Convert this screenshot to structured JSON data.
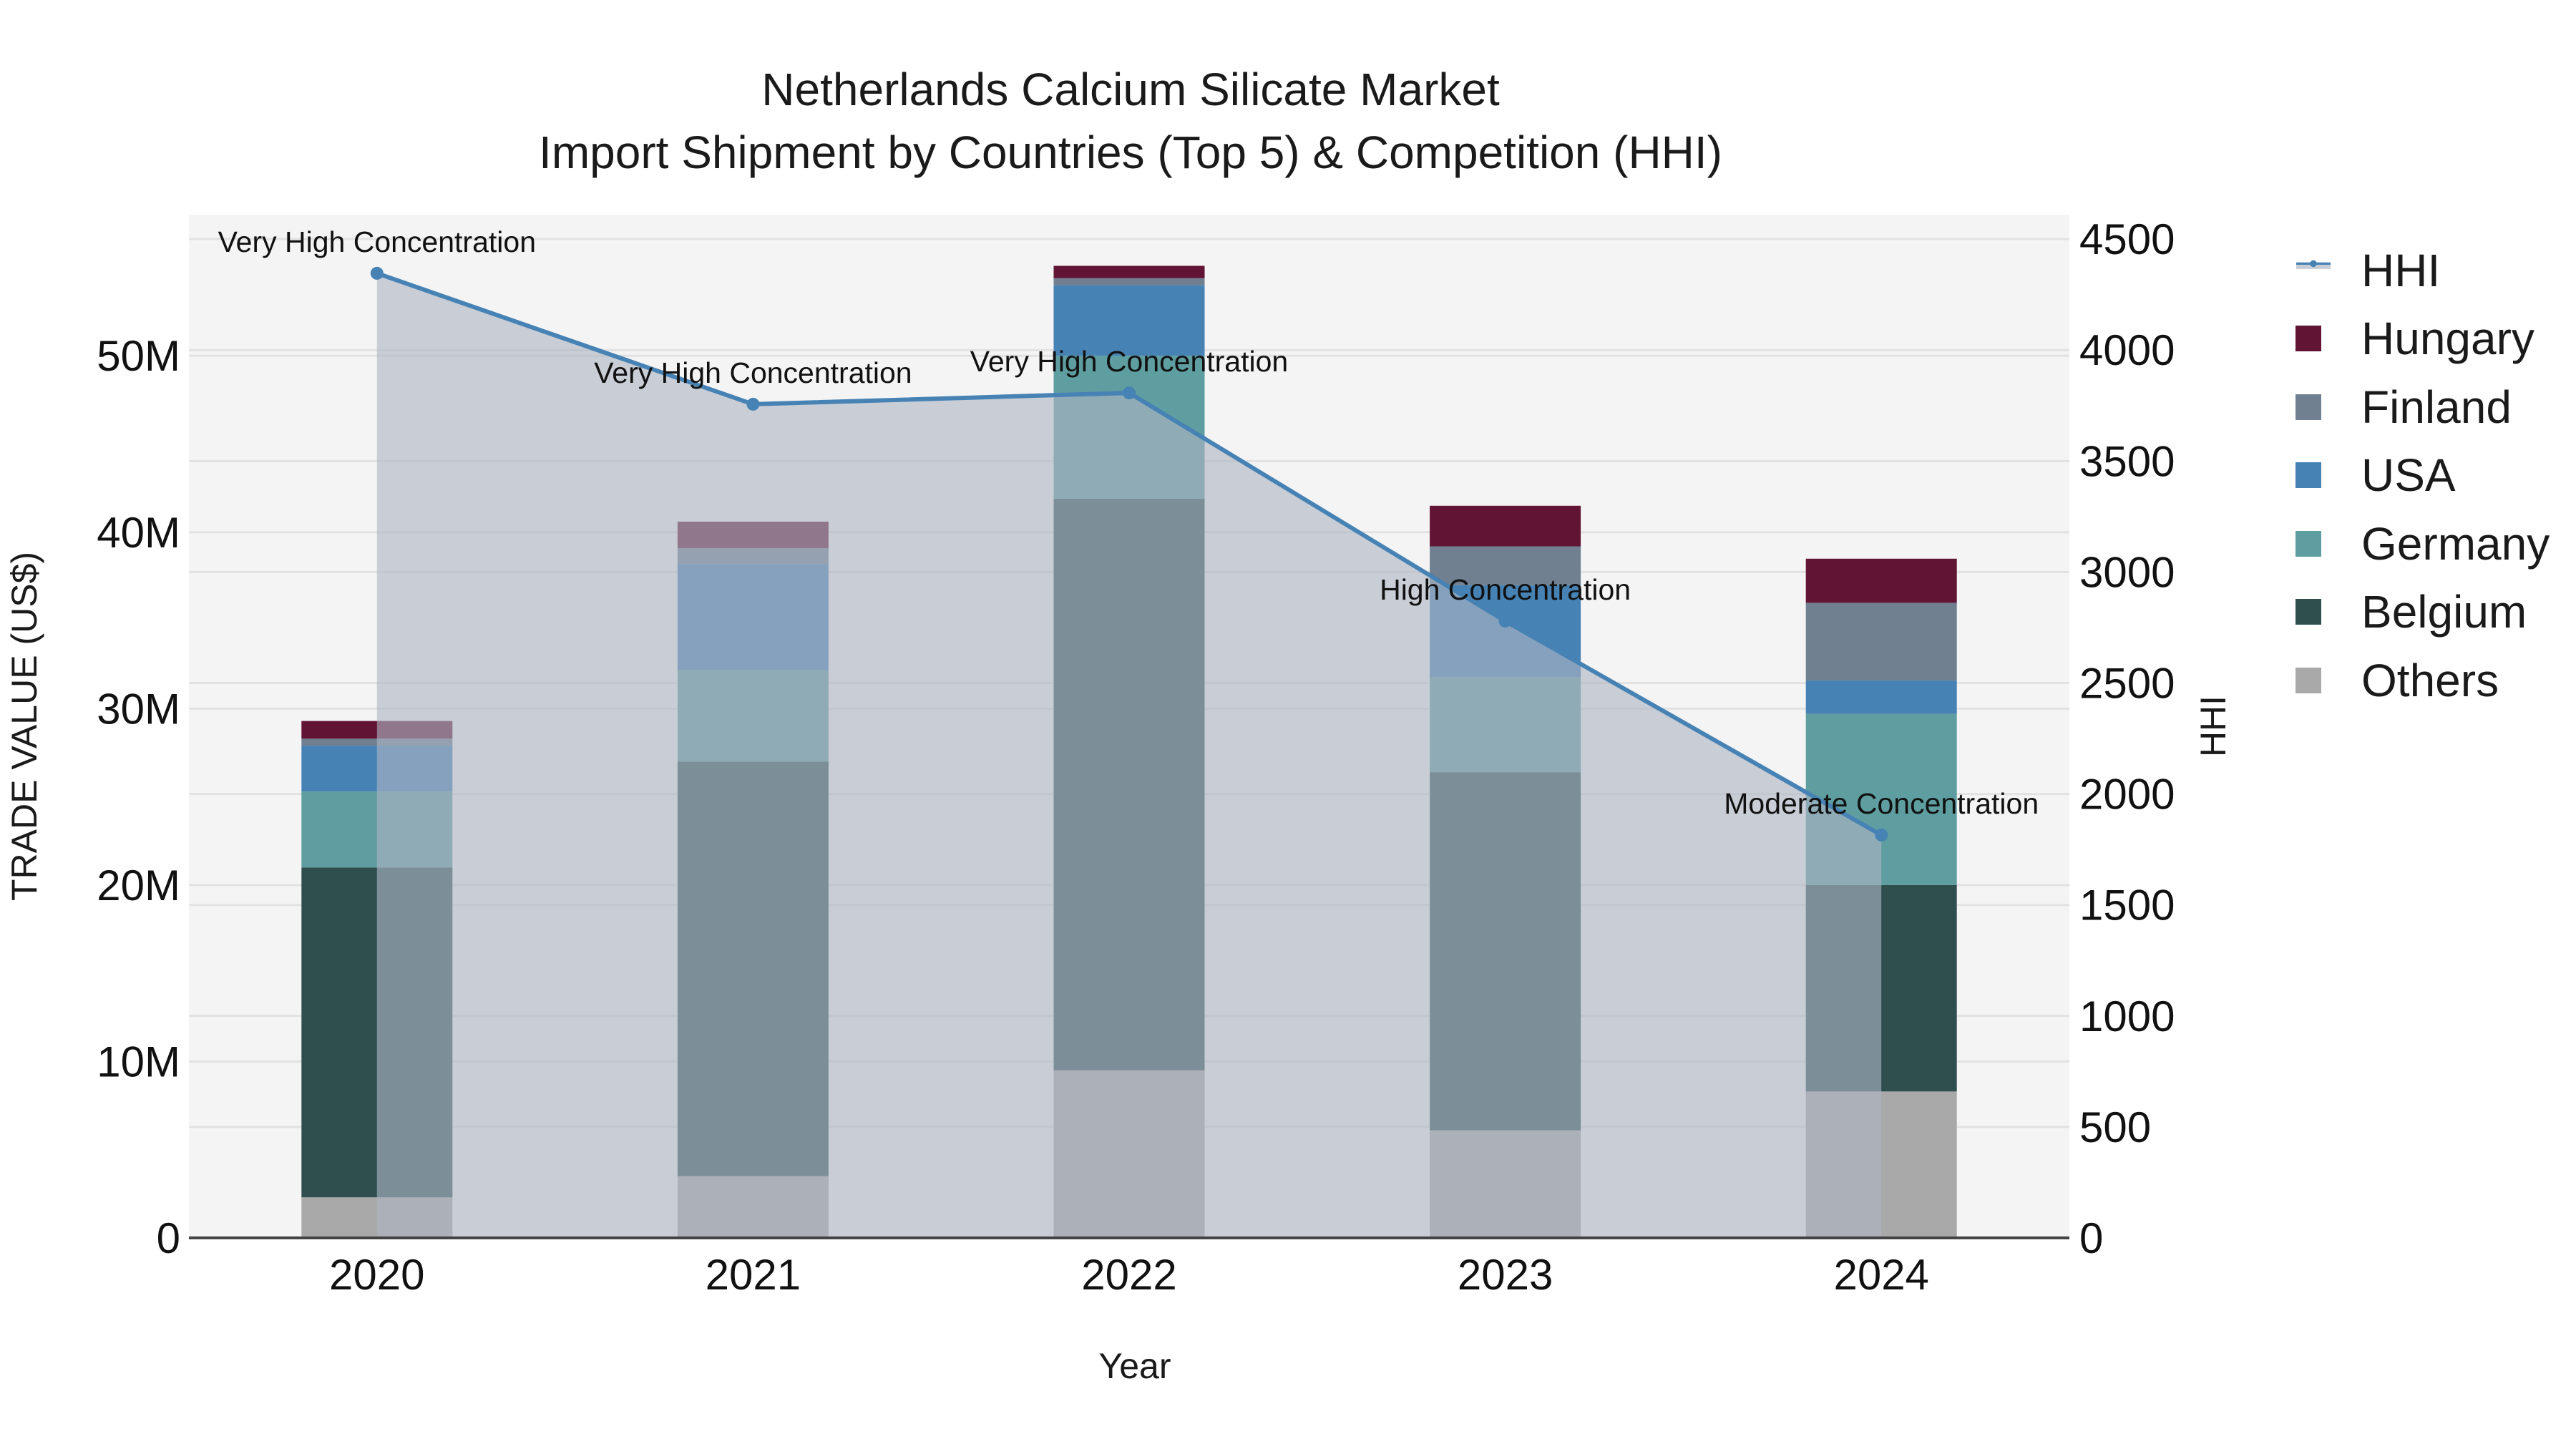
{
  "title": {
    "line1": "Netherlands Calcium Silicate Market",
    "line2": "Import Shipment by Countries (Top 5) & Competition (HHI)"
  },
  "axes": {
    "x_title": "Year",
    "y_left_title": "TRADE VALUE (US$)",
    "y_right_title": "HHI",
    "y_left_ticks": [
      {
        "value": 0,
        "label": "0"
      },
      {
        "value": 10000000,
        "label": "10M"
      },
      {
        "value": 20000000,
        "label": "20M"
      },
      {
        "value": 30000000,
        "label": "30M"
      },
      {
        "value": 40000000,
        "label": "40M"
      },
      {
        "value": 50000000,
        "label": "50M"
      }
    ],
    "y_right_ticks": [
      {
        "value": 0,
        "label": "0"
      },
      {
        "value": 500,
        "label": "500"
      },
      {
        "value": 1000,
        "label": "1000"
      },
      {
        "value": 1500,
        "label": "1500"
      },
      {
        "value": 2000,
        "label": "2000"
      },
      {
        "value": 2500,
        "label": "2500"
      },
      {
        "value": 3000,
        "label": "3000"
      },
      {
        "value": 3500,
        "label": "3500"
      },
      {
        "value": 4000,
        "label": "4000"
      },
      {
        "value": 4500,
        "label": "4500"
      }
    ]
  },
  "legend": [
    {
      "name": "HHI",
      "kind": "line",
      "color": "#4682b4",
      "fill": "#c8ccd4"
    },
    {
      "name": "Hungary",
      "kind": "box",
      "color": "#611434"
    },
    {
      "name": "Finland",
      "kind": "box",
      "color": "#708090"
    },
    {
      "name": "USA",
      "kind": "box",
      "color": "#4682b4"
    },
    {
      "name": "Germany",
      "kind": "box",
      "color": "#5f9ea0"
    },
    {
      "name": "Belgium",
      "kind": "box",
      "color": "#2f4f4f"
    },
    {
      "name": "Others",
      "kind": "box",
      "color": "#a9a9a9"
    }
  ],
  "colors": {
    "plot_bg": "#f4f4f4",
    "grid": "#e2e2e2",
    "hhi_line": "#4682b4",
    "hhi_fill": "rgba(172,180,196,0.62)",
    "axis_line": "#444444"
  },
  "chart_data": {
    "type": "bar",
    "title": "Netherlands Calcium Silicate Market — Import Shipment by Countries (Top 5) & Competition (HHI)",
    "xlabel": "Year",
    "ylabel": "TRADE VALUE (US$)",
    "y2label": "HHI",
    "categories": [
      "2020",
      "2021",
      "2022",
      "2023",
      "2024"
    ],
    "stacked": true,
    "ylim": [
      0,
      58000000
    ],
    "y2lim": [
      0,
      4610
    ],
    "grid": true,
    "legend_position": "right",
    "series": [
      {
        "name": "Others",
        "color": "#a9a9a9",
        "values": [
          2300000,
          3500000,
          9500000,
          6100000,
          8300000
        ]
      },
      {
        "name": "Belgium",
        "color": "#2f4f4f",
        "values": [
          18700000,
          23500000,
          32400000,
          20300000,
          11700000
        ]
      },
      {
        "name": "Germany",
        "color": "#5f9ea0",
        "values": [
          4300000,
          5200000,
          8100000,
          5400000,
          9700000
        ]
      },
      {
        "name": "USA",
        "color": "#4682b4",
        "values": [
          2600000,
          6000000,
          4000000,
          5200000,
          1900000
        ]
      },
      {
        "name": "Finland",
        "color": "#708090",
        "values": [
          400000,
          900000,
          400000,
          2200000,
          4400000
        ]
      },
      {
        "name": "Hungary",
        "color": "#611434",
        "values": [
          1000000,
          1500000,
          700000,
          2300000,
          2500000
        ]
      }
    ],
    "line_series": {
      "name": "HHI",
      "axis": "right",
      "values": [
        4346,
        3756,
        3807,
        2779,
        1815
      ],
      "annotations": [
        "Very High Concentration",
        "Very High Concentration",
        "Very High Concentration",
        "High Concentration",
        "Moderate Concentration"
      ]
    }
  }
}
